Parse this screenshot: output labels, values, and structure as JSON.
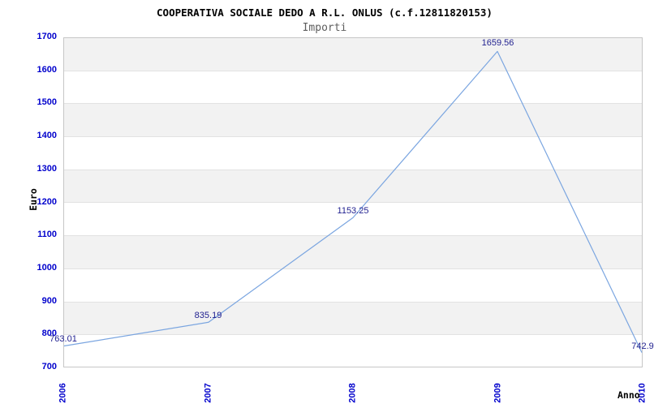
{
  "chart_data": {
    "type": "line",
    "title": "COOPERATIVA SOCIALE DEDO A R.L. ONLUS (c.f.12811820153)",
    "subtitle": "Importi",
    "xlabel": "Anno",
    "ylabel": "Euro",
    "categories": [
      "2006",
      "2007",
      "2008",
      "2009",
      "2010"
    ],
    "series": [
      {
        "name": "Importi",
        "values": [
          763.01,
          835.19,
          1153.25,
          1659.56,
          742.9
        ],
        "point_labels": [
          "763.01",
          "835.19",
          "1153.25",
          "1659.56",
          "742.9"
        ]
      }
    ],
    "ylim": [
      700,
      1700
    ],
    "ytick_step": 100,
    "yticks": [
      700,
      800,
      900,
      1000,
      1100,
      1200,
      1300,
      1400,
      1500,
      1600,
      1700
    ],
    "grid": "horizontal-bands",
    "legend_position": "none"
  },
  "colors": {
    "line": "#7aa5e0",
    "tick_label": "#0000cc",
    "point_label": "#1f1f8f",
    "band_fill": "#f2f2f2",
    "band_separator": "#e2e2e2",
    "plot_border": "#c6c6c6",
    "title": "#000000",
    "subtitle": "#5e5e5e"
  }
}
